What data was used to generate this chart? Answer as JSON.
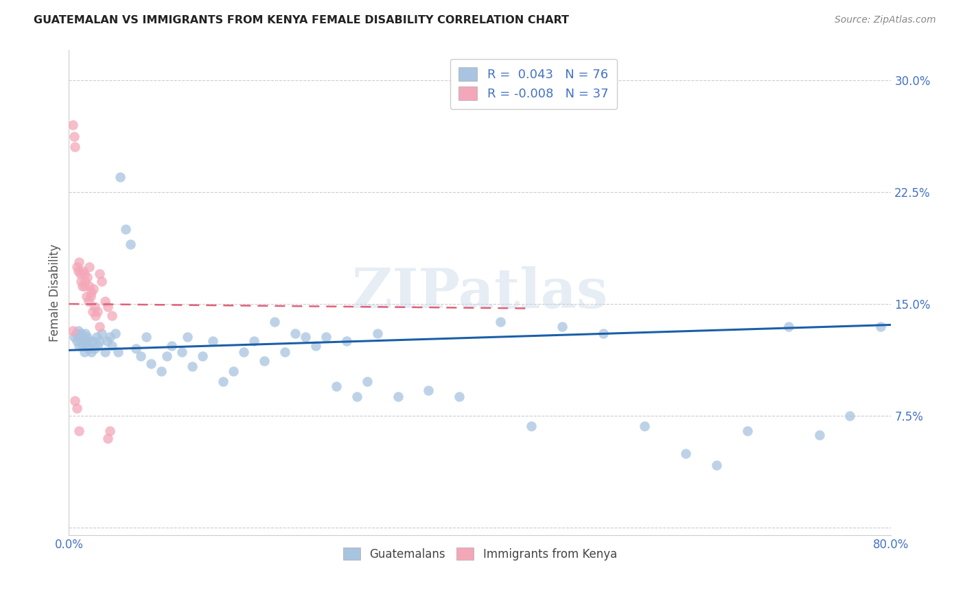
{
  "title": "GUATEMALAN VS IMMIGRANTS FROM KENYA FEMALE DISABILITY CORRELATION CHART",
  "source": "Source: ZipAtlas.com",
  "ylabel": "Female Disability",
  "xlim": [
    0.0,
    0.8
  ],
  "ylim": [
    -0.005,
    0.32
  ],
  "yticks": [
    0.0,
    0.075,
    0.15,
    0.225,
    0.3
  ],
  "ytick_labels": [
    "",
    "7.5%",
    "15.0%",
    "22.5%",
    "30.0%"
  ],
  "xtick_vals": [
    0.0,
    0.8
  ],
  "xtick_labels": [
    "0.0%",
    "80.0%"
  ],
  "blue_scatter_color": "#a8c4e0",
  "pink_scatter_color": "#f4a7b9",
  "blue_line_color": "#1a5fa8",
  "pink_line_color": "#e0607a",
  "watermark_text": "ZIPatlas",
  "grid_color": "#cccccc",
  "legend_labels": [
    "R =  0.043   N = 76",
    "R = -0.008   N = 37"
  ],
  "bottom_labels": [
    "Guatemalans",
    "Immigrants from Kenya"
  ],
  "blue_trend_x": [
    0.0,
    0.8
  ],
  "blue_trend_y": [
    0.119,
    0.136
  ],
  "pink_trend_x": [
    0.0,
    0.45
  ],
  "pink_trend_y": [
    0.15,
    0.147
  ],
  "guatemalans_x": [
    0.005,
    0.007,
    0.008,
    0.009,
    0.01,
    0.01,
    0.012,
    0.012,
    0.013,
    0.014,
    0.015,
    0.015,
    0.016,
    0.017,
    0.018,
    0.019,
    0.02,
    0.022,
    0.023,
    0.025,
    0.027,
    0.028,
    0.03,
    0.032,
    0.035,
    0.037,
    0.04,
    0.042,
    0.045,
    0.048,
    0.05,
    0.055,
    0.06,
    0.065,
    0.07,
    0.075,
    0.08,
    0.09,
    0.095,
    0.1,
    0.11,
    0.115,
    0.12,
    0.13,
    0.14,
    0.15,
    0.16,
    0.17,
    0.18,
    0.19,
    0.2,
    0.21,
    0.22,
    0.23,
    0.24,
    0.25,
    0.26,
    0.27,
    0.28,
    0.29,
    0.3,
    0.32,
    0.35,
    0.38,
    0.42,
    0.45,
    0.48,
    0.52,
    0.56,
    0.6,
    0.63,
    0.66,
    0.7,
    0.73,
    0.76,
    0.79
  ],
  "guatemalans_y": [
    0.128,
    0.13,
    0.125,
    0.132,
    0.128,
    0.122,
    0.13,
    0.126,
    0.122,
    0.128,
    0.125,
    0.118,
    0.13,
    0.122,
    0.128,
    0.12,
    0.125,
    0.118,
    0.125,
    0.12,
    0.128,
    0.122,
    0.125,
    0.13,
    0.118,
    0.125,
    0.128,
    0.122,
    0.13,
    0.118,
    0.235,
    0.2,
    0.19,
    0.12,
    0.115,
    0.128,
    0.11,
    0.105,
    0.115,
    0.122,
    0.118,
    0.128,
    0.108,
    0.115,
    0.125,
    0.098,
    0.105,
    0.118,
    0.125,
    0.112,
    0.138,
    0.118,
    0.13,
    0.128,
    0.122,
    0.128,
    0.095,
    0.125,
    0.088,
    0.098,
    0.13,
    0.088,
    0.092,
    0.088,
    0.138,
    0.068,
    0.135,
    0.13,
    0.068,
    0.05,
    0.042,
    0.065,
    0.135,
    0.062,
    0.075,
    0.135
  ],
  "kenya_x": [
    0.004,
    0.005,
    0.006,
    0.008,
    0.009,
    0.01,
    0.011,
    0.012,
    0.013,
    0.014,
    0.015,
    0.015,
    0.016,
    0.017,
    0.018,
    0.019,
    0.02,
    0.021,
    0.022,
    0.023,
    0.024,
    0.025,
    0.026,
    0.028,
    0.03,
    0.032,
    0.035,
    0.038,
    0.04,
    0.042,
    0.006,
    0.01,
    0.03,
    0.038,
    0.004,
    0.008,
    0.02
  ],
  "kenya_y": [
    0.27,
    0.262,
    0.255,
    0.175,
    0.172,
    0.178,
    0.17,
    0.165,
    0.162,
    0.172,
    0.17,
    0.162,
    0.165,
    0.155,
    0.168,
    0.152,
    0.162,
    0.155,
    0.158,
    0.145,
    0.16,
    0.148,
    0.142,
    0.145,
    0.135,
    0.165,
    0.152,
    0.06,
    0.065,
    0.142,
    0.085,
    0.065,
    0.17,
    0.148,
    0.132,
    0.08,
    0.175
  ]
}
